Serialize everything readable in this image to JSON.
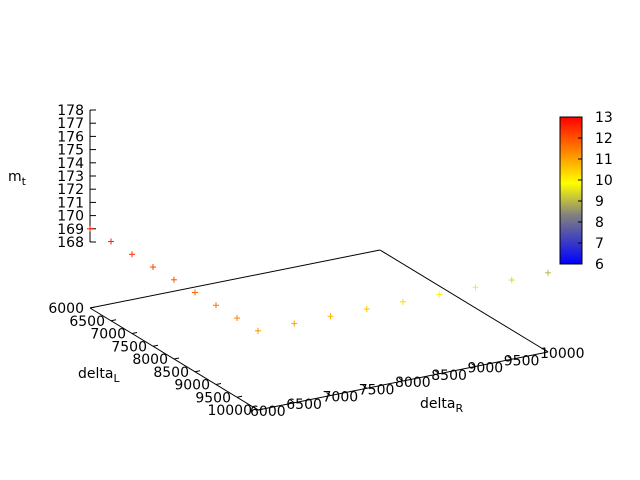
{
  "chart_data": {
    "type": "scatter",
    "title": "",
    "zlabel": "m",
    "zlabel_sub": "t",
    "xlabel": "delta",
    "xlabel_sub": "R",
    "ylabel": "delta",
    "ylabel_sub": "L",
    "zlim": [
      168,
      178
    ],
    "xlim": [
      6000,
      10000
    ],
    "ylim": [
      6000,
      10000
    ],
    "z_ticks": [
      "168",
      "169",
      "170",
      "171",
      "172",
      "173",
      "174",
      "175",
      "176",
      "177",
      "178"
    ],
    "x_ticks": [
      "6000",
      "6500",
      "7000",
      "7500",
      "8000",
      "8500",
      "9000",
      "9500",
      "10000"
    ],
    "y_ticks": [
      "6000",
      "6500",
      "7000",
      "7500",
      "8000",
      "8500",
      "9000",
      "9500",
      "10000"
    ],
    "colorbar": {
      "range": [
        6,
        13
      ],
      "ticks": [
        "6",
        "7",
        "8",
        "9",
        "10",
        "11",
        "12",
        "13"
      ],
      "colors": [
        "#0000ff",
        "#808080",
        "#ffff00",
        "#ff0000"
      ]
    },
    "marker": "+",
    "series": [
      {
        "m_t": 169,
        "points": [
          {
            "x": 6000,
            "y": 6000,
            "c": 12.8
          },
          {
            "x": 6000,
            "y": 6500,
            "c": 12.6
          },
          {
            "x": 6000,
            "y": 7000,
            "c": 12.4
          },
          {
            "x": 6000,
            "y": 7500,
            "c": 12.2
          },
          {
            "x": 6000,
            "y": 8000,
            "c": 12.0
          },
          {
            "x": 6000,
            "y": 8500,
            "c": 11.8
          },
          {
            "x": 6000,
            "y": 9000,
            "c": 11.6
          },
          {
            "x": 6000,
            "y": 9500,
            "c": 11.4
          },
          {
            "x": 6000,
            "y": 10000,
            "c": 11.2
          },
          {
            "x": 6500,
            "y": 10000,
            "c": 11.0
          },
          {
            "x": 7000,
            "y": 10000,
            "c": 10.8
          },
          {
            "x": 7500,
            "y": 10000,
            "c": 10.6
          },
          {
            "x": 8000,
            "y": 10000,
            "c": 10.3
          },
          {
            "x": 8500,
            "y": 10000,
            "c": 10.0
          },
          {
            "x": 9000,
            "y": 10000,
            "c": 9.7
          },
          {
            "x": 9500,
            "y": 10000,
            "c": 9.4
          },
          {
            "x": 10000,
            "y": 10000,
            "c": 9.0
          }
        ]
      }
    ]
  }
}
